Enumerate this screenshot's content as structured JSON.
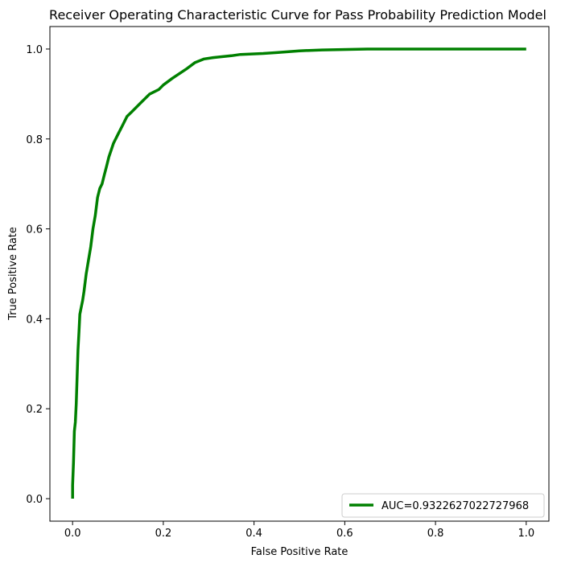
{
  "chart_data": {
    "type": "line",
    "title": "Receiver Operating Characteristic Curve for Pass Probability Prediction Model",
    "xlabel": "False Positive Rate",
    "ylabel": "True Positive Rate",
    "xlim": [
      -0.05,
      1.05
    ],
    "ylim": [
      -0.05,
      1.05
    ],
    "xticks": [
      0.0,
      0.2,
      0.4,
      0.6,
      0.8,
      1.0
    ],
    "yticks": [
      0.0,
      0.2,
      0.4,
      0.6,
      0.8,
      1.0
    ],
    "xtick_labels": [
      "0.0",
      "0.2",
      "0.4",
      "0.6",
      "0.8",
      "1.0"
    ],
    "ytick_labels": [
      "0.0",
      "0.2",
      "0.4",
      "0.6",
      "0.8",
      "1.0"
    ],
    "grid": false,
    "legend_position": "lower-right",
    "series": [
      {
        "name": "AUC=0.9322627022727968",
        "color": "#008000",
        "x": [
          0.0,
          0.0,
          0.002,
          0.004,
          0.006,
          0.008,
          0.01,
          0.012,
          0.014,
          0.016,
          0.018,
          0.022,
          0.025,
          0.03,
          0.035,
          0.04,
          0.045,
          0.05,
          0.055,
          0.06,
          0.065,
          0.07,
          0.075,
          0.08,
          0.085,
          0.09,
          0.1,
          0.11,
          0.12,
          0.13,
          0.15,
          0.17,
          0.19,
          0.2,
          0.22,
          0.25,
          0.27,
          0.29,
          0.31,
          0.35,
          0.37,
          0.42,
          0.45,
          0.5,
          0.55,
          0.65,
          0.75,
          0.85,
          1.0
        ],
        "y": [
          0.0,
          0.03,
          0.08,
          0.15,
          0.17,
          0.21,
          0.27,
          0.33,
          0.37,
          0.41,
          0.42,
          0.44,
          0.46,
          0.5,
          0.53,
          0.56,
          0.6,
          0.63,
          0.67,
          0.69,
          0.7,
          0.72,
          0.74,
          0.76,
          0.775,
          0.79,
          0.81,
          0.83,
          0.85,
          0.86,
          0.88,
          0.9,
          0.91,
          0.92,
          0.935,
          0.955,
          0.97,
          0.978,
          0.981,
          0.985,
          0.988,
          0.99,
          0.992,
          0.996,
          0.998,
          1.0,
          1.0,
          1.0,
          1.0
        ]
      }
    ]
  }
}
